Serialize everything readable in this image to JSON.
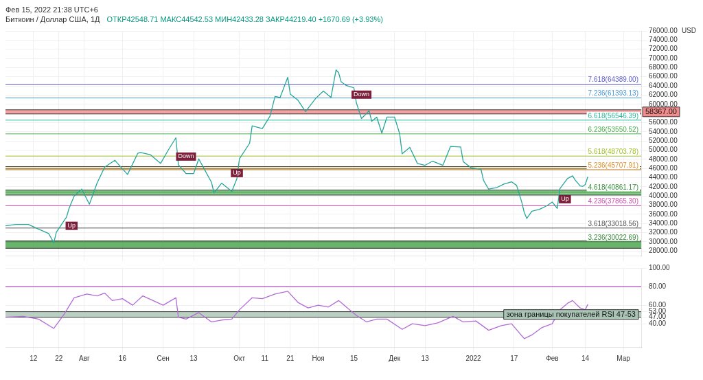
{
  "chart_data": [
    {
      "type": "line",
      "title": "Биткоин / Доллар США, 1Д",
      "subtitle": "ОТКР42548.71 МАКС44542.53 МИН42433.28 ЗАКР44219.40 +1670.69 (+3.93%)",
      "ylabel": "USD",
      "annotations": [
        "Фев 15, 2022 21:38 UTC+6",
        {
          "text": "Down",
          "x": "2021-09-10",
          "y": 48600
        },
        {
          "text": "Down",
          "x": "2021-11-18",
          "y": 62100
        },
        {
          "text": "Up",
          "x": "2021-07-27",
          "y": 33500
        },
        {
          "text": "Up",
          "x": "2021-09-30",
          "y": 45000
        },
        {
          "text": "Up",
          "x": "2022-02-06",
          "y": 39300
        }
      ],
      "x": [
        "2021-07-01",
        "2021-07-05",
        "2021-07-10",
        "2021-07-14",
        "2021-07-18",
        "2021-07-20",
        "2021-07-21",
        "2021-07-25",
        "2021-07-26",
        "2021-07-28",
        "2021-07-31",
        "2021-08-03",
        "2021-08-06",
        "2021-08-09",
        "2021-08-13",
        "2021-08-16",
        "2021-08-18",
        "2021-08-22",
        "2021-08-23",
        "2021-08-27",
        "2021-08-31",
        "2021-09-03",
        "2021-09-06",
        "2021-09-07",
        "2021-09-10",
        "2021-09-13",
        "2021-09-15",
        "2021-09-20",
        "2021-09-21",
        "2021-09-24",
        "2021-09-28",
        "2021-09-30",
        "2021-10-01",
        "2021-10-05",
        "2021-10-06",
        "2021-10-10",
        "2021-10-13",
        "2021-10-15",
        "2021-10-17",
        "2021-10-20",
        "2021-10-21",
        "2021-10-24",
        "2021-10-27",
        "2021-10-31",
        "2021-11-03",
        "2021-11-06",
        "2021-11-08",
        "2021-11-09",
        "2021-11-10",
        "2021-11-12",
        "2021-11-15",
        "2021-11-16",
        "2021-11-18",
        "2021-11-21",
        "2021-11-22",
        "2021-11-24",
        "2021-11-26",
        "2021-11-28",
        "2021-12-01",
        "2021-12-03",
        "2021-12-04",
        "2021-12-07",
        "2021-12-10",
        "2021-12-13",
        "2021-12-16",
        "2021-12-20",
        "2021-12-23",
        "2021-12-27",
        "2021-12-28",
        "2021-12-31",
        "2022-01-04",
        "2022-01-05",
        "2022-01-07",
        "2022-01-10",
        "2022-01-13",
        "2022-01-16",
        "2022-01-18",
        "2022-01-20",
        "2022-01-21",
        "2022-01-22",
        "2022-01-24",
        "2022-01-27",
        "2022-01-30",
        "2022-02-01",
        "2022-02-03",
        "2022-02-04",
        "2022-02-07",
        "2022-02-09",
        "2022-02-10",
        "2022-02-12",
        "2022-02-13",
        "2022-02-14",
        "2022-02-15"
      ],
      "series": [
        {
          "color": "#26a69a",
          "values": [
            33500,
            33800,
            33800,
            32800,
            31800,
            29800,
            32100,
            35400,
            37300,
            40000,
            41500,
            38200,
            42800,
            46300,
            47800,
            45900,
            44700,
            49300,
            49500,
            49000,
            47100,
            50000,
            52700,
            46800,
            44900,
            44900,
            48100,
            43000,
            40700,
            42800,
            41000,
            43800,
            48100,
            51500,
            55300,
            54700,
            57400,
            61700,
            61500,
            65900,
            62200,
            60900,
            58400,
            61300,
            62900,
            61500,
            67500,
            66900,
            64900,
            64100,
            63600,
            60300,
            56900,
            58600,
            56300,
            57200,
            53700,
            57200,
            57200,
            53600,
            49200,
            50600,
            47100,
            46700,
            47600,
            46700,
            50800,
            50700,
            47500,
            46200,
            45800,
            43400,
            41500,
            41800,
            42600,
            43100,
            42300,
            38700,
            36400,
            35100,
            36700,
            37100,
            37900,
            38700,
            37300,
            41600,
            43800,
            44400,
            43500,
            42200,
            42100,
            42500,
            44200
          ]
        }
      ],
      "xlim": [
        "2021-07-01",
        "2022-03-08"
      ],
      "xticks": [
        {
          "value": "2021-07-12",
          "label": null
        },
        {
          "value": "2021-07-22",
          "label": null
        },
        {
          "value": "2021-08-01",
          "label": null
        },
        {
          "value": "2021-08-16",
          "label": null
        },
        {
          "value": "2021-09-01",
          "label": null
        },
        {
          "value": "2021-09-13",
          "label": null
        },
        {
          "value": "2021-10-01",
          "label": null
        },
        {
          "value": "2021-10-11",
          "label": null
        },
        {
          "value": "2021-10-21",
          "label": null
        },
        {
          "value": "2021-11-01",
          "label": null
        },
        {
          "value": "2021-11-15",
          "label": null
        },
        {
          "value": "2021-12-01",
          "label": null
        },
        {
          "value": "2021-12-13",
          "label": null
        },
        {
          "value": "2022-01-01",
          "label": null
        },
        {
          "value": "2022-01-17",
          "label": null
        },
        {
          "value": "2022-02-01",
          "label": null
        },
        {
          "value": "2022-02-14",
          "label": null
        },
        {
          "value": "2022-03-01",
          "label": null
        }
      ],
      "ylim": [
        27000,
        76000
      ],
      "yticks": [
        {
          "value": 28000,
          "label": "28000.00"
        },
        {
          "value": 30000,
          "label": "30000.00"
        },
        {
          "value": 32000,
          "label": "32000.00"
        },
        {
          "value": 34000,
          "label": "34000.00"
        },
        {
          "value": 36000,
          "label": "36000.00"
        },
        {
          "value": 38000,
          "label": "38000.00"
        },
        {
          "value": 40000,
          "label": "40000.00"
        },
        {
          "value": 42000,
          "label": "42000.00"
        },
        {
          "value": 44000,
          "label": "44000.00"
        },
        {
          "value": 46000,
          "label": "46000.00"
        },
        {
          "value": 48000,
          "label": "48000.00"
        },
        {
          "value": 50000,
          "label": "50000.00"
        },
        {
          "value": 52000,
          "label": "52000.00"
        },
        {
          "value": 54000,
          "label": "54000.00"
        },
        {
          "value": 56000,
          "label": "56000.00"
        },
        {
          "value": 60000,
          "label": "60000.00"
        },
        {
          "value": 62000,
          "label": "62000.00"
        },
        {
          "value": 64000,
          "label": "64000.00"
        },
        {
          "value": 66000,
          "label": "66000.00"
        },
        {
          "value": 68000,
          "label": "68000.00"
        },
        {
          "value": 70000,
          "label": "70000.00"
        },
        {
          "value": 72000,
          "label": "72000.00"
        },
        {
          "value": 74000,
          "label": "74000.00"
        },
        {
          "value": 76000,
          "label": "76000.00"
        }
      ],
      "ref_lines": [
        {
          "axis": "y",
          "value": 64389.0,
          "label": "7.618(64389.00)",
          "color": "#5b5bd6"
        },
        {
          "axis": "y",
          "value": 61393.13,
          "label": "7.236(61393.13)",
          "color": "#4a9ad6"
        },
        {
          "axis": "y",
          "value": 56546.39,
          "label": "6.618(56546.39)",
          "color": "#2bb89a"
        },
        {
          "axis": "y",
          "value": 53550.52,
          "label": "6.236(53550.52)",
          "color": "#4caf50"
        },
        {
          "axis": "y",
          "value": 48703.78,
          "label": "5.618(48703.78)",
          "color": "#9fbf2a"
        },
        {
          "axis": "y",
          "value": 45707.91,
          "label": "5.236(45707.91)",
          "color": "#e0902a"
        },
        {
          "axis": "y",
          "value": 40861.17,
          "label": "4.618(40861.17)",
          "color": "#388e3c"
        },
        {
          "axis": "y",
          "value": 37865.3,
          "label": "4.236(37865.30)",
          "color": "#d04fb0"
        },
        {
          "axis": "y",
          "value": 33018.56,
          "label": "3.618(33018.56)",
          "color": "#555555"
        },
        {
          "axis": "y",
          "value": 30022.69,
          "label": "3.236(30022.69)",
          "color": "#388e3c"
        }
      ],
      "bands": [
        {
          "axis": "y",
          "from": 57900,
          "to": 58800,
          "label": "58367.00",
          "color": "#f28b8b"
        },
        {
          "axis": "y",
          "from": 45900,
          "to": 46400,
          "color": "#ffe9a8"
        },
        {
          "axis": "y",
          "from": 40200,
          "to": 41300,
          "color": "#66bb6a"
        },
        {
          "axis": "y",
          "from": 28600,
          "to": 30200,
          "color": "#43a047"
        }
      ],
      "grid": true,
      "tick_labels": "y"
    },
    {
      "type": "line",
      "x": [
        "2021-07-01",
        "2021-07-08",
        "2021-07-14",
        "2021-07-20",
        "2021-07-24",
        "2021-07-28",
        "2021-08-02",
        "2021-08-06",
        "2021-08-09",
        "2021-08-12",
        "2021-08-16",
        "2021-08-20",
        "2021-08-24",
        "2021-08-28",
        "2021-09-01",
        "2021-09-06",
        "2021-09-07",
        "2021-09-10",
        "2021-09-15",
        "2021-09-20",
        "2021-09-24",
        "2021-09-28",
        "2021-10-01",
        "2021-10-06",
        "2021-10-10",
        "2021-10-15",
        "2021-10-20",
        "2021-10-24",
        "2021-10-28",
        "2021-11-01",
        "2021-11-05",
        "2021-11-09",
        "2021-11-12",
        "2021-11-16",
        "2021-11-20",
        "2021-11-24",
        "2021-11-28",
        "2021-12-04",
        "2021-12-08",
        "2021-12-13",
        "2021-12-18",
        "2021-12-24",
        "2021-12-28",
        "2022-01-02",
        "2022-01-07",
        "2022-01-12",
        "2022-01-16",
        "2022-01-21",
        "2022-01-24",
        "2022-01-28",
        "2022-02-01",
        "2022-02-04",
        "2022-02-07",
        "2022-02-09",
        "2022-02-12",
        "2022-02-14",
        "2022-02-15"
      ],
      "series": [
        {
          "color": "#b36bd6",
          "values": [
            47,
            48,
            45,
            35,
            50,
            68,
            72,
            70,
            73,
            65,
            67,
            60,
            70,
            65,
            60,
            68,
            47,
            45,
            52,
            42,
            44,
            45,
            55,
            68,
            67,
            72,
            75,
            63,
            57,
            60,
            58,
            65,
            58,
            49,
            42,
            45,
            45,
            34,
            40,
            38,
            41,
            48,
            42,
            43,
            33,
            38,
            40,
            24,
            28,
            36,
            40,
            55,
            62,
            65,
            57,
            55,
            61
          ]
        }
      ],
      "xlim": [
        "2021-07-01",
        "2022-03-08"
      ],
      "xticks": [
        {
          "value": "2021-07-12",
          "label": "12"
        },
        {
          "value": "2021-07-22",
          "label": "22"
        },
        {
          "value": "2021-08-01",
          "label": "Авг"
        },
        {
          "value": "2021-08-16",
          "label": "16"
        },
        {
          "value": "2021-09-01",
          "label": "Сен"
        },
        {
          "value": "2021-09-13",
          "label": "13"
        },
        {
          "value": "2021-10-01",
          "label": "Окт"
        },
        {
          "value": "2021-10-11",
          "label": "11"
        },
        {
          "value": "2021-10-21",
          "label": "21"
        },
        {
          "value": "2021-11-01",
          "label": "Ноя"
        },
        {
          "value": "2021-11-15",
          "label": "15"
        },
        {
          "value": "2021-12-01",
          "label": "Дек"
        },
        {
          "value": "2021-12-13",
          "label": "13"
        },
        {
          "value": "2022-01-01",
          "label": "2022"
        },
        {
          "value": "2022-01-17",
          "label": "17"
        },
        {
          "value": "2022-02-01",
          "label": "Фев"
        },
        {
          "value": "2022-02-14",
          "label": "14"
        },
        {
          "value": "2022-03-01",
          "label": "Мар"
        }
      ],
      "ylim": [
        15,
        100
      ],
      "yticks": [
        {
          "value": 40,
          "label": "40.00"
        },
        {
          "value": 47,
          "label": "47.00"
        },
        {
          "value": 53,
          "label": "53.00"
        },
        {
          "value": 60,
          "label": "60.00"
        },
        {
          "value": 80,
          "label": "80.00"
        },
        {
          "value": 100,
          "label": "100.00"
        }
      ],
      "ref_lines": [
        {
          "axis": "y",
          "value": 80,
          "color": "#9c27b0"
        }
      ],
      "bands": [
        {
          "axis": "y",
          "from": 47,
          "to": 53,
          "label": "зона границы покупателей RSI 47-53",
          "color": "#a9c4b4"
        }
      ],
      "grid": true
    }
  ]
}
